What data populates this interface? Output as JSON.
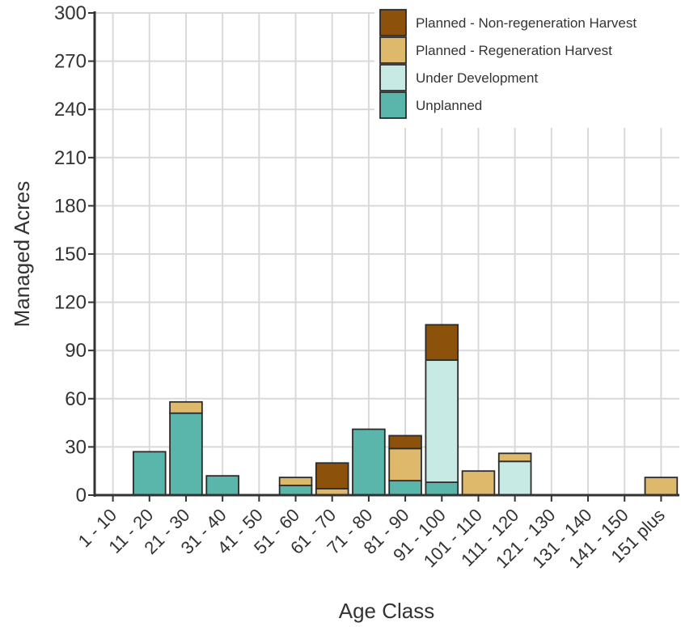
{
  "chart_data": {
    "type": "bar",
    "stacked": true,
    "xlabel": "Age Class",
    "ylabel": "Managed Acres",
    "ylim": [
      0,
      300
    ],
    "yticks": [
      0,
      30,
      60,
      90,
      120,
      150,
      180,
      210,
      240,
      270,
      300
    ],
    "grid": true,
    "legend_position": "top-right",
    "categories": [
      "1 - 10",
      "11 - 20",
      "21 - 30",
      "31 - 40",
      "41 - 50",
      "51 - 60",
      "61 - 70",
      "71 - 80",
      "81 - 90",
      "91 - 100",
      "101 - 110",
      "111 - 120",
      "121 - 130",
      "131 - 140",
      "141 - 150",
      "151 plus"
    ],
    "series": [
      {
        "name": "Unplanned",
        "color": "#5ab5ab",
        "values": [
          0,
          27,
          51,
          12,
          0,
          6,
          0,
          41,
          9,
          8,
          0,
          0,
          0,
          0,
          0,
          0
        ]
      },
      {
        "name": "Under Development",
        "color": "#c7eae4",
        "values": [
          0,
          0,
          0,
          0,
          0,
          0,
          0,
          0,
          0,
          76,
          0,
          21,
          0,
          0,
          0,
          0
        ]
      },
      {
        "name": "Planned - Regeneration Harvest",
        "color": "#dfb96b",
        "values": [
          0,
          0,
          7,
          0,
          0,
          5,
          4,
          0,
          20,
          0,
          15,
          5,
          0,
          0,
          0,
          11
        ]
      },
      {
        "name": "Planned - Non-regeneration Harvest",
        "color": "#8c510a",
        "values": [
          0,
          0,
          0,
          0,
          0,
          0,
          16,
          0,
          8,
          22,
          0,
          0,
          0,
          0,
          0,
          0
        ]
      }
    ],
    "legend_order": [
      "Planned - Non-regeneration Harvest",
      "Planned - Regeneration Harvest",
      "Under Development",
      "Unplanned"
    ]
  }
}
